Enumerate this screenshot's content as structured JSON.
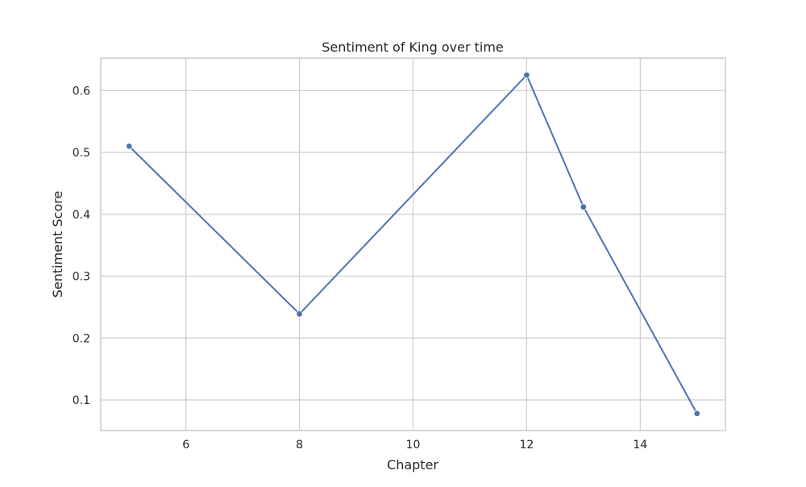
{
  "chart_data": {
    "type": "line",
    "title": "Sentiment of King over time",
    "xlabel": "Chapter",
    "ylabel": "Sentiment Score",
    "x": [
      5,
      8,
      12,
      13,
      15
    ],
    "series": [
      {
        "values": [
          0.51,
          0.239,
          0.625,
          0.412,
          0.078
        ]
      }
    ],
    "xlim": [
      4.5,
      15.5
    ],
    "ylim": [
      0.0505,
      0.6525
    ],
    "xticks": [
      6,
      8,
      10,
      12,
      14
    ],
    "yticks": [
      0.1,
      0.2,
      0.3,
      0.4,
      0.5,
      0.6
    ],
    "xtick_labels": [
      "6",
      "8",
      "10",
      "12",
      "14"
    ],
    "ytick_labels": [
      "0.1",
      "0.2",
      "0.3",
      "0.4",
      "0.5",
      "0.6"
    ],
    "grid": true,
    "legend": "none",
    "colors": {
      "line": "#4c72b0",
      "grid": "#cccccc",
      "frame": "#cccccc"
    }
  }
}
